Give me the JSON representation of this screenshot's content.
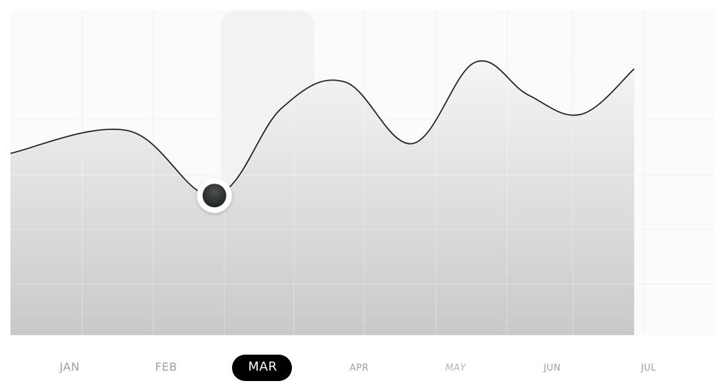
{
  "chart_data": {
    "type": "area",
    "categories": [
      "JAN",
      "FEB",
      "MAR",
      "APR",
      "MAY",
      "JUN",
      "JUL"
    ],
    "selected_category": "MAR",
    "curve": {
      "x": [
        0.0,
        0.6,
        1.5,
        2.2,
        2.85,
        3.55,
        4.2,
        4.75,
        5.3,
        5.85
      ],
      "y": [
        56,
        63,
        43,
        70,
        78,
        59,
        84,
        74,
        68,
        82
      ]
    },
    "marker": {
      "x": 1.5,
      "y": 43
    },
    "xlim": [
      -0.65,
      5.85
    ],
    "ylim": [
      0,
      100
    ],
    "grid": true,
    "colors": {
      "line": "#1f2326",
      "area_top": "#f4f5f6",
      "area_bottom": "#c8c9ca",
      "highlight": "#eef0f2",
      "marker_outer": "#ffffff",
      "marker_inner": "#2e3330",
      "pill": "#000000",
      "label": "#9aa0a6"
    }
  }
}
